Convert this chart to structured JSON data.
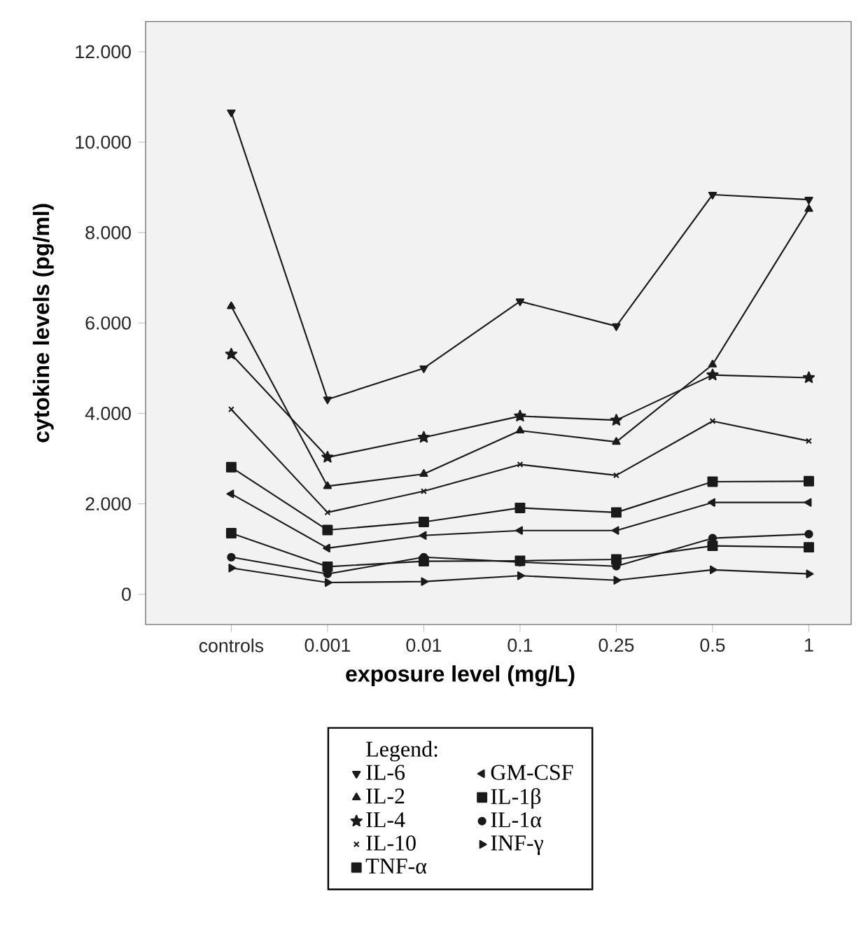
{
  "chart_data": {
    "type": "line",
    "xlabel": "exposure level (mg/L)",
    "ylabel": "cytokine levels (pg/ml)",
    "legend_title": "Legend:",
    "legend": "bottom",
    "grid": false,
    "categories": [
      "controls",
      "0.001",
      "0.01",
      "0.1",
      "0.25",
      "0.5",
      "1"
    ],
    "ylim": [
      -0.67,
      12.67
    ],
    "yticks": [
      {
        "value": 0,
        "label": "0"
      },
      {
        "value": 2,
        "label": "2.000"
      },
      {
        "value": 4,
        "label": "4.000"
      },
      {
        "value": 6,
        "label": "6.000"
      },
      {
        "value": 8,
        "label": "8.000"
      },
      {
        "value": 10,
        "label": "10.000"
      },
      {
        "value": 12,
        "label": "12.000"
      }
    ],
    "series": [
      {
        "name": "IL-6",
        "color": "#1a1a1a",
        "marker": "triangle_down",
        "values": [
          10.66,
          4.31,
          5.0,
          6.48,
          5.93,
          8.84,
          8.73
        ]
      },
      {
        "name": "IL-2",
        "color": "#1a1a1a",
        "marker": "triangle",
        "values": [
          6.37,
          2.39,
          2.66,
          3.62,
          3.37,
          5.08,
          8.52
        ]
      },
      {
        "name": "IL-4",
        "color": "#1a1a1a",
        "marker": "star",
        "values": [
          5.31,
          3.03,
          3.47,
          3.94,
          3.85,
          4.85,
          4.79
        ]
      },
      {
        "name": "IL-10",
        "color": "#1a1a1a",
        "marker": "cross",
        "values": [
          4.09,
          1.81,
          2.28,
          2.87,
          2.63,
          3.83,
          3.39
        ]
      },
      {
        "name": "TNF-α",
        "color": "#1a1a1a",
        "marker": "square",
        "values": [
          2.81,
          1.42,
          1.6,
          1.91,
          1.81,
          2.49,
          2.5
        ]
      },
      {
        "name": "GM-CSF",
        "color": "#1a1a1a",
        "marker": "triangle_left",
        "values": [
          2.22,
          1.02,
          1.3,
          1.41,
          1.41,
          2.03,
          2.03
        ]
      },
      {
        "name": "IL-1β",
        "color": "#1a1a1a",
        "marker": "square",
        "values": [
          1.35,
          0.61,
          0.73,
          0.74,
          0.77,
          1.07,
          1.04
        ]
      },
      {
        "name": "IL-1α",
        "color": "#1a1a1a",
        "marker": "circle",
        "values": [
          0.82,
          0.45,
          0.82,
          0.71,
          0.62,
          1.24,
          1.33
        ]
      },
      {
        "name": "INF-γ",
        "color": "#1a1a1a",
        "marker": "triangle_right",
        "values": [
          0.58,
          0.26,
          0.28,
          0.41,
          0.31,
          0.54,
          0.45
        ]
      }
    ]
  }
}
